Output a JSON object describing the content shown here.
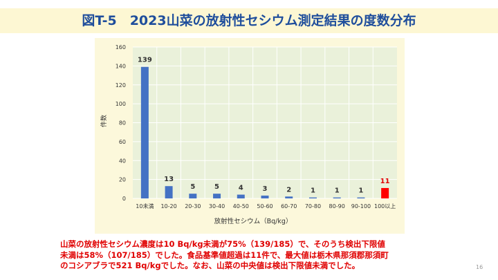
{
  "slide": {
    "title": "図T-5　2023山菜の放射性セシウム測定結果の度数分布",
    "note_lines": [
      "山菜の放射性セシウム濃度は10 Bq/kg未満が75%（139/185）で、そのうち検出下限値",
      "未満は58%（107/185）でした。食品基準値超過は11件で、最大値は栃木県那須郡那須町",
      "のコシアブラで521 Bq/kgでした。なお、山菜の中央値は検出下限値未満でした。"
    ],
    "page_number": "16"
  },
  "colors": {
    "title_text": "#1f4e9c",
    "title_band": "#fdf7d3",
    "panel_background": "#fcf8db",
    "plot_background": "#eaf1da",
    "bar_default": "#4472c4",
    "bar_highlight": "#ff0000",
    "highlight_label": "#e00000",
    "note_text": "#e00000"
  },
  "chart_data": {
    "type": "bar",
    "title": "",
    "xlabel": "放射性セシウム（Bq/kg）",
    "ylabel": "件数",
    "ylim": [
      0,
      160
    ],
    "yticks": [
      0,
      20,
      40,
      60,
      80,
      100,
      120,
      140,
      160
    ],
    "grid": true,
    "categories": [
      "10未満",
      "10-20",
      "20-30",
      "30-40",
      "40-50",
      "50-60",
      "60-70",
      "70-80",
      "80-90",
      "90-100",
      "100以上"
    ],
    "values": [
      139,
      13,
      5,
      5,
      4,
      3,
      2,
      1,
      1,
      1,
      11
    ],
    "data_labels": [
      "139",
      "13",
      "5",
      "5",
      "4",
      "3",
      "2",
      "1",
      "1",
      "1",
      "11"
    ],
    "highlighted_category": "100以上"
  }
}
